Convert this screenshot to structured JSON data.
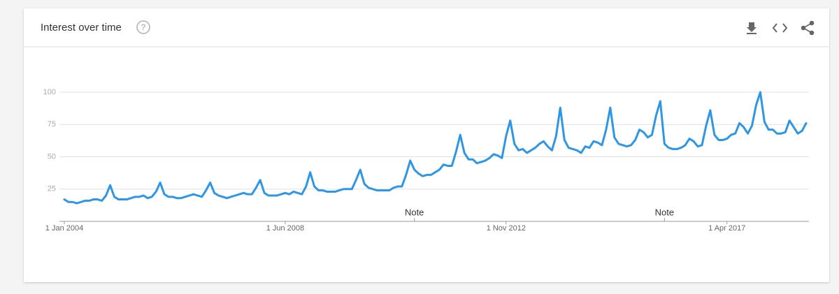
{
  "chart_data": {
    "type": "line",
    "title": "Interest over time",
    "x": [
      "2004-01-01",
      "2004-02-01",
      "2004-03-01",
      "2004-04-01",
      "2004-05-01",
      "2004-06-01",
      "2004-07-01",
      "2004-08-01",
      "2004-09-01",
      "2004-10-01",
      "2004-11-01",
      "2004-12-01",
      "2005-01-01",
      "2005-02-01",
      "2005-03-01",
      "2005-04-01",
      "2005-05-01",
      "2005-06-01",
      "2005-07-01",
      "2005-08-01",
      "2005-09-01",
      "2005-10-01",
      "2005-11-01",
      "2005-12-01",
      "2006-01-01",
      "2006-02-01",
      "2006-03-01",
      "2006-04-01",
      "2006-05-01",
      "2006-06-01",
      "2006-07-01",
      "2006-08-01",
      "2006-09-01",
      "2006-10-01",
      "2006-11-01",
      "2006-12-01",
      "2007-01-01",
      "2007-02-01",
      "2007-03-01",
      "2007-04-01",
      "2007-05-01",
      "2007-06-01",
      "2007-07-01",
      "2007-08-01",
      "2007-09-01",
      "2007-10-01",
      "2007-11-01",
      "2007-12-01",
      "2008-01-01",
      "2008-02-01",
      "2008-03-01",
      "2008-04-01",
      "2008-05-01",
      "2008-06-01",
      "2008-07-01",
      "2008-08-01",
      "2008-09-01",
      "2008-10-01",
      "2008-11-01",
      "2008-12-01",
      "2009-01-01",
      "2009-02-01",
      "2009-03-01",
      "2009-04-01",
      "2009-05-01",
      "2009-06-01",
      "2009-07-01",
      "2009-08-01",
      "2009-09-01",
      "2009-10-01",
      "2009-11-01",
      "2009-12-01",
      "2010-01-01",
      "2010-02-01",
      "2010-03-01",
      "2010-04-01",
      "2010-05-01",
      "2010-06-01",
      "2010-07-01",
      "2010-08-01",
      "2010-09-01",
      "2010-10-01",
      "2010-11-01",
      "2010-12-01",
      "2011-01-01",
      "2011-02-01",
      "2011-03-01",
      "2011-04-01",
      "2011-05-01",
      "2011-06-01",
      "2011-07-01",
      "2011-08-01",
      "2011-09-01",
      "2011-10-01",
      "2011-11-01",
      "2011-12-01",
      "2012-01-01",
      "2012-02-01",
      "2012-03-01",
      "2012-04-01",
      "2012-05-01",
      "2012-06-01",
      "2012-07-01",
      "2012-08-01",
      "2012-09-01",
      "2012-10-01",
      "2012-11-01",
      "2012-12-01",
      "2013-01-01",
      "2013-02-01",
      "2013-03-01",
      "2013-04-01",
      "2013-05-01",
      "2013-06-01",
      "2013-07-01",
      "2013-08-01",
      "2013-09-01",
      "2013-10-01",
      "2013-11-01",
      "2013-12-01",
      "2014-01-01",
      "2014-02-01",
      "2014-03-01",
      "2014-04-01",
      "2014-05-01",
      "2014-06-01",
      "2014-07-01",
      "2014-08-01",
      "2014-09-01",
      "2014-10-01",
      "2014-11-01",
      "2014-12-01",
      "2015-01-01",
      "2015-02-01",
      "2015-03-01",
      "2015-04-01",
      "2015-05-01",
      "2015-06-01",
      "2015-07-01",
      "2015-08-01",
      "2015-09-01",
      "2015-10-01",
      "2015-11-01",
      "2015-12-01",
      "2016-01-01",
      "2016-02-01",
      "2016-03-01",
      "2016-04-01",
      "2016-05-01",
      "2016-06-01",
      "2016-07-01",
      "2016-08-01",
      "2016-09-01",
      "2016-10-01",
      "2016-11-01",
      "2016-12-01",
      "2017-01-01",
      "2017-02-01",
      "2017-03-01",
      "2017-04-01",
      "2017-05-01",
      "2017-06-01",
      "2017-07-01",
      "2017-08-01",
      "2017-09-01",
      "2017-10-01",
      "2017-11-01",
      "2017-12-01",
      "2018-01-01",
      "2018-02-01",
      "2018-03-01",
      "2018-04-01",
      "2018-05-01",
      "2018-06-01",
      "2018-07-01",
      "2018-08-01",
      "2018-09-01",
      "2018-10-01",
      "2018-11-01"
    ],
    "values": [
      17,
      15,
      15,
      14,
      15,
      16,
      16,
      17,
      17,
      16,
      20,
      28,
      19,
      17,
      17,
      17,
      18,
      19,
      19,
      20,
      18,
      19,
      23,
      30,
      21,
      19,
      19,
      18,
      18,
      19,
      20,
      21,
      20,
      19,
      24,
      30,
      22,
      20,
      19,
      18,
      19,
      20,
      21,
      22,
      21,
      21,
      26,
      32,
      22,
      20,
      20,
      20,
      21,
      22,
      21,
      23,
      22,
      21,
      27,
      38,
      27,
      24,
      24,
      23,
      23,
      23,
      24,
      25,
      25,
      25,
      32,
      40,
      29,
      26,
      25,
      24,
      24,
      24,
      24,
      26,
      27,
      27,
      36,
      47,
      40,
      37,
      35,
      36,
      36,
      38,
      40,
      44,
      43,
      43,
      54,
      67,
      53,
      48,
      48,
      45,
      46,
      47,
      49,
      52,
      51,
      49,
      66,
      78,
      60,
      55,
      56,
      53,
      55,
      57,
      60,
      62,
      58,
      55,
      66,
      88,
      63,
      57,
      56,
      55,
      53,
      58,
      57,
      62,
      61,
      59,
      71,
      88,
      65,
      60,
      59,
      58,
      59,
      63,
      71,
      69,
      65,
      67,
      82,
      93,
      60,
      57,
      56,
      56,
      57,
      59,
      64,
      62,
      58,
      59,
      74,
      86,
      67,
      63,
      63,
      64,
      67,
      68,
      76,
      73,
      68,
      74,
      90,
      100,
      77,
      71,
      71,
      68,
      68,
      69,
      78,
      73,
      68,
      70,
      76
    ],
    "color": "#2d96e6",
    "xlim": [
      "2004-01-01",
      "2018-11-01"
    ],
    "xticks": [
      {
        "value": "2004-01-01",
        "label": "1 Jan 2004"
      },
      {
        "value": "2008-06-01",
        "label": "1 Jun 2008"
      },
      {
        "value": "2012-11-01",
        "label": "1 Nov 2012"
      },
      {
        "value": "2017-04-01",
        "label": "1 Apr 2017"
      }
    ],
    "ylim": [
      0,
      100
    ],
    "yticks": [
      25,
      50,
      75,
      100
    ],
    "grid": true,
    "annotations": [
      {
        "x": "2011-01-01",
        "text": "Note"
      },
      {
        "x": "2016-01-01",
        "text": "Note"
      }
    ]
  }
}
